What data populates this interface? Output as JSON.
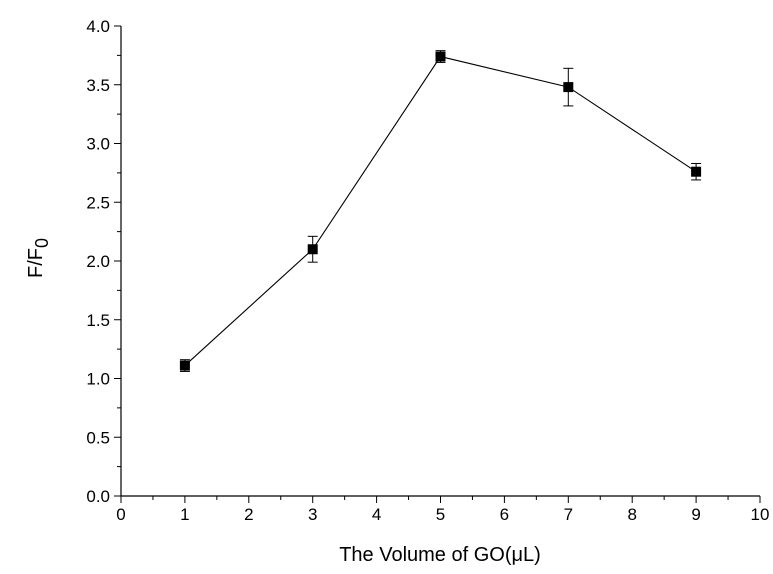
{
  "chart_data": {
    "type": "line",
    "xlabel": "The Volume of GO(μL)",
    "ylabel": "F/F",
    "ylabel_subscript": "0",
    "xlim": [
      0,
      10
    ],
    "ylim": [
      0.0,
      4.0
    ],
    "x_ticks": [
      0,
      1,
      2,
      3,
      4,
      5,
      6,
      7,
      8,
      9,
      10
    ],
    "y_ticks": [
      "0.0",
      "0.5",
      "1.0",
      "1.5",
      "2.0",
      "2.5",
      "3.0",
      "3.5",
      "4.0"
    ],
    "series": [
      {
        "x": [
          1,
          3,
          5,
          7,
          9
        ],
        "y": [
          1.11,
          2.1,
          3.74,
          3.48,
          2.76
        ],
        "error": [
          0.05,
          0.11,
          0.05,
          0.16,
          0.07
        ],
        "marker": "square",
        "color": "#000000"
      }
    ],
    "grid": false,
    "legend": "none"
  }
}
